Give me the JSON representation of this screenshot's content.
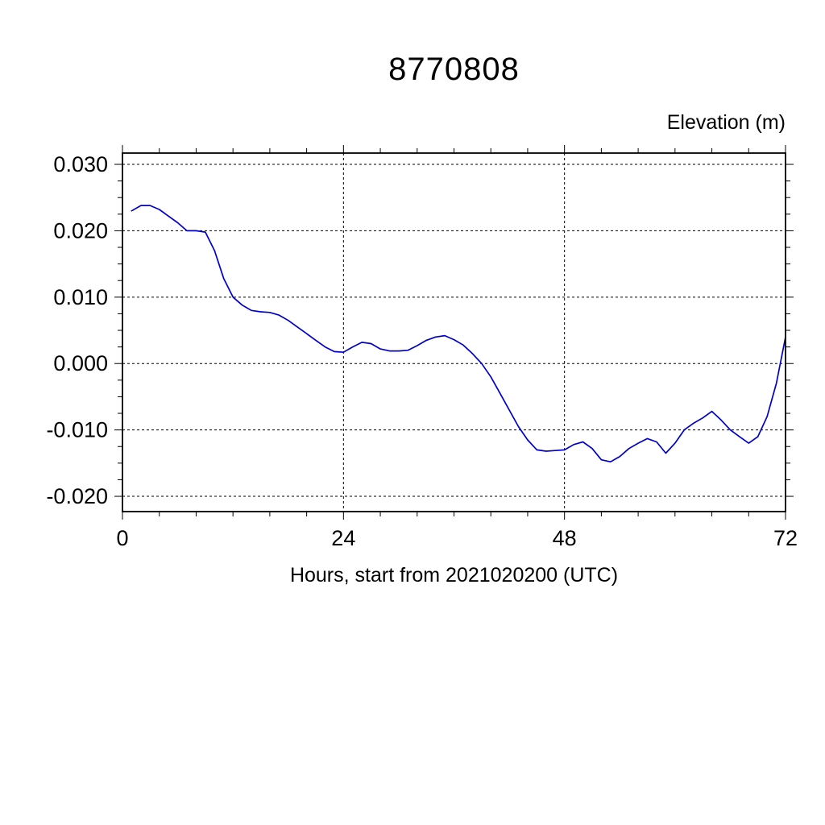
{
  "figure": {
    "background": "#ffffff",
    "frame_color": "#000000"
  },
  "chart_data": {
    "type": "line",
    "title": "8770808",
    "ylabel": "Elevation (m)",
    "xlabel": "Hours, start from 2021020200 (UTC)",
    "line_color": "#0000cc",
    "grid": "dashed",
    "legend": "none",
    "xlim": [
      0,
      72
    ],
    "ylim": [
      -0.0223,
      0.0317
    ],
    "xticks": [
      0,
      24,
      48,
      72
    ],
    "xtick_labels": [
      "0",
      "24",
      "48",
      "72"
    ],
    "yticks": [
      0.03,
      0.02,
      0.01,
      0.0,
      -0.01,
      -0.02
    ],
    "ytick_labels": [
      "0.030",
      "0.020",
      "0.010",
      "0.000",
      "-0.010",
      "-0.020"
    ],
    "x_minor_step": 4,
    "y_minor_step": 0.0025,
    "x": [
      1,
      2,
      3,
      4,
      5,
      6,
      7,
      8,
      9,
      10,
      11,
      12,
      13,
      14,
      15,
      16,
      17,
      18,
      19,
      20,
      21,
      22,
      23,
      24,
      25,
      26,
      27,
      28,
      29,
      30,
      31,
      32,
      33,
      34,
      35,
      36,
      37,
      38,
      39,
      40,
      41,
      42,
      43,
      44,
      45,
      46,
      47,
      48,
      49,
      50,
      51,
      52,
      53,
      54,
      55,
      56,
      57,
      58,
      59,
      60,
      61,
      62,
      63,
      64,
      65,
      66,
      67,
      68,
      69,
      70,
      71,
      72
    ],
    "values": [
      0.023,
      0.0238,
      0.0238,
      0.0232,
      0.0222,
      0.0212,
      0.02,
      0.02,
      0.0198,
      0.017,
      0.0128,
      0.01,
      0.0088,
      0.008,
      0.0078,
      0.0077,
      0.0073,
      0.0065,
      0.0055,
      0.0045,
      0.0035,
      0.0025,
      0.0018,
      0.0017,
      0.0025,
      0.0032,
      0.003,
      0.0022,
      0.0019,
      0.0019,
      0.002,
      0.0027,
      0.0035,
      0.004,
      0.0042,
      0.0036,
      0.0028,
      0.0015,
      0.0,
      -0.002,
      -0.0045,
      -0.007,
      -0.0095,
      -0.0115,
      -0.013,
      -0.0132,
      -0.0131,
      -0.013,
      -0.0122,
      -0.0118,
      -0.0128,
      -0.0145,
      -0.0148,
      -0.014,
      -0.0128,
      -0.012,
      -0.0113,
      -0.0118,
      -0.0135,
      -0.012,
      -0.01,
      -0.009,
      -0.0082,
      -0.0072,
      -0.0085,
      -0.01,
      -0.011,
      -0.012,
      -0.011,
      -0.008,
      -0.003,
      0.004
    ]
  }
}
